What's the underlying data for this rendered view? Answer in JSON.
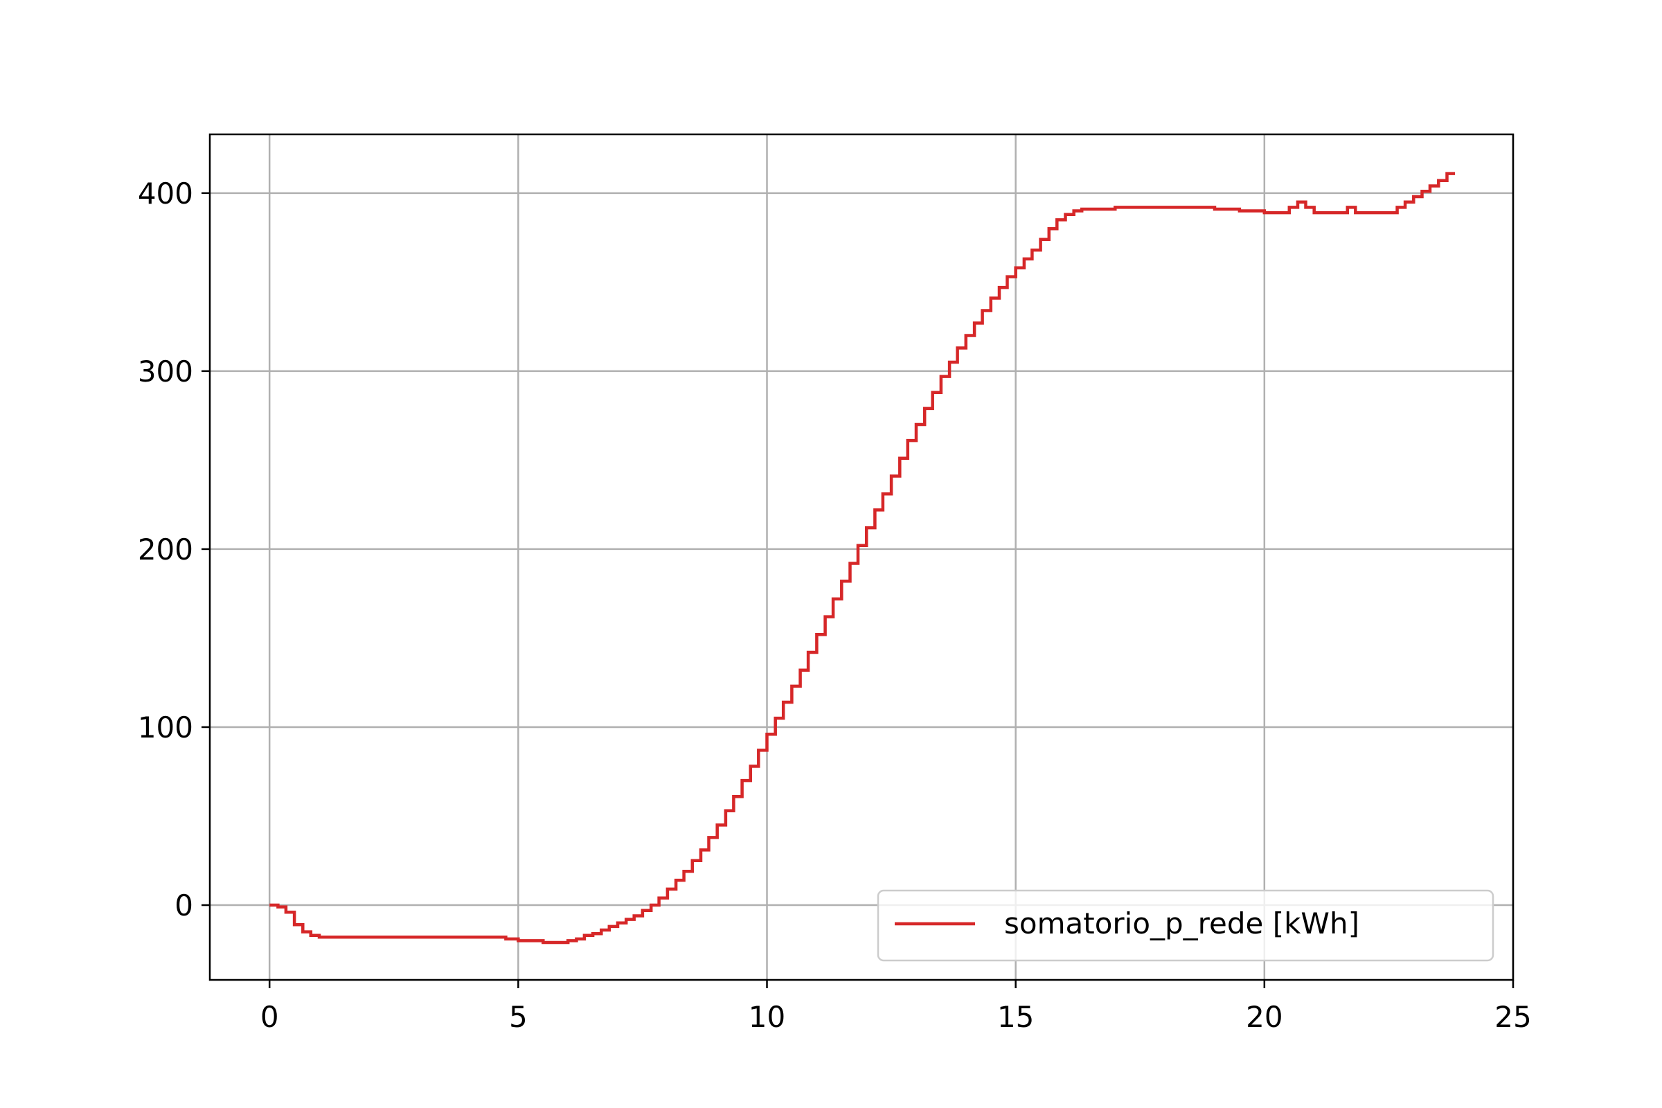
{
  "chart_data": {
    "type": "line",
    "drawstyle": "steps-post",
    "title": "",
    "xlabel": "",
    "ylabel": "",
    "xlim": [
      -1.2,
      25
    ],
    "ylim": [
      -42,
      433
    ],
    "xticks": [
      0,
      5,
      10,
      15,
      20,
      25
    ],
    "yticks": [
      0,
      100,
      200,
      300,
      400
    ],
    "grid": true,
    "legend_position": "lower-right",
    "series": [
      {
        "name": "somatorio_p_rede [kWh]",
        "color": "#d62728",
        "x": [
          0,
          0.17,
          0.33,
          0.5,
          0.67,
          0.83,
          1.0,
          1.5,
          2.0,
          2.5,
          3.0,
          3.5,
          4.0,
          4.5,
          4.75,
          5.0,
          5.25,
          5.5,
          5.75,
          6.0,
          6.17,
          6.33,
          6.5,
          6.67,
          6.83,
          7.0,
          7.17,
          7.33,
          7.5,
          7.67,
          7.83,
          8.0,
          8.17,
          8.33,
          8.5,
          8.67,
          8.83,
          9.0,
          9.17,
          9.33,
          9.5,
          9.67,
          9.83,
          10.0,
          10.17,
          10.33,
          10.5,
          10.67,
          10.83,
          11.0,
          11.17,
          11.33,
          11.5,
          11.67,
          11.83,
          12.0,
          12.17,
          12.33,
          12.5,
          12.67,
          12.83,
          13.0,
          13.17,
          13.33,
          13.5,
          13.67,
          13.83,
          14.0,
          14.17,
          14.33,
          14.5,
          14.67,
          14.83,
          15.0,
          15.17,
          15.33,
          15.5,
          15.67,
          15.83,
          16.0,
          16.17,
          16.33,
          17.0,
          18.0,
          18.5,
          19.0,
          19.5,
          20.0,
          20.33,
          20.5,
          20.67,
          20.83,
          21.0,
          21.5,
          21.67,
          21.83,
          22.0,
          22.5,
          22.67,
          22.83,
          23.0,
          23.17,
          23.33,
          23.5,
          23.67,
          23.83
        ],
        "y": [
          0,
          -1,
          -4,
          -11,
          -15,
          -17,
          -18,
          -18,
          -18,
          -18,
          -18,
          -18,
          -18,
          -18,
          -19,
          -20,
          -20,
          -21,
          -21,
          -20,
          -19,
          -17,
          -16,
          -14,
          -12,
          -10,
          -8,
          -6,
          -3,
          0,
          4,
          9,
          14,
          19,
          25,
          31,
          38,
          45,
          53,
          61,
          70,
          78,
          87,
          96,
          105,
          114,
          123,
          132,
          142,
          152,
          162,
          172,
          182,
          192,
          202,
          212,
          222,
          231,
          241,
          251,
          261,
          270,
          279,
          288,
          297,
          305,
          313,
          320,
          327,
          334,
          341,
          347,
          353,
          358,
          363,
          368,
          374,
          380,
          385,
          388,
          390,
          391,
          392,
          392,
          392,
          391,
          390,
          389,
          389,
          392,
          395,
          392,
          389,
          389,
          392,
          389,
          389,
          389,
          392,
          395,
          398,
          401,
          404,
          407,
          411,
          411
        ]
      }
    ]
  }
}
